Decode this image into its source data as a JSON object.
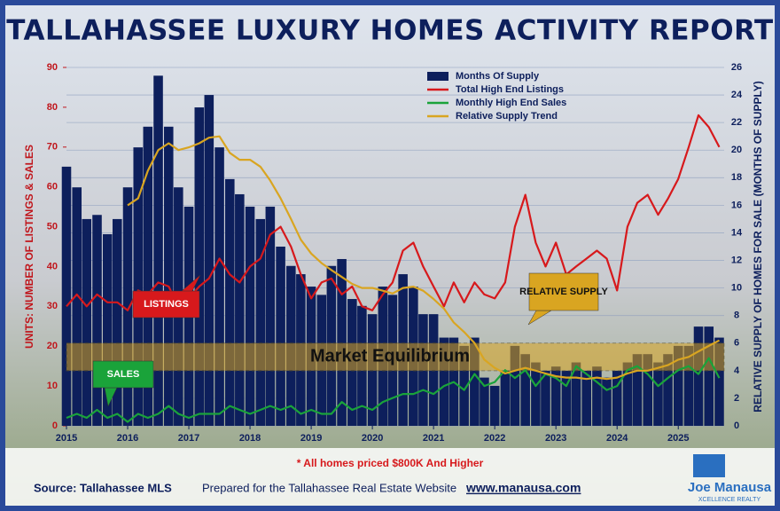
{
  "chart_data": {
    "type": "bar",
    "title": "TALLAHASSEE LUXURY HOMES ACTIVITY REPORT",
    "y_label": "UNITS: NUMBER OF LISTINGS & SALES",
    "y2_label": "RELATIVE SUPPLY OF HOMES FOR SALE (MONTHS OF SUPPLY)",
    "x": [
      2015.0,
      2015.17,
      2015.33,
      2015.5,
      2015.67,
      2015.83,
      2016.0,
      2016.17,
      2016.33,
      2016.5,
      2016.67,
      2016.83,
      2017.0,
      2017.17,
      2017.33,
      2017.5,
      2017.67,
      2017.83,
      2018.0,
      2018.17,
      2018.33,
      2018.5,
      2018.67,
      2018.83,
      2019.0,
      2019.17,
      2019.33,
      2019.5,
      2019.67,
      2019.83,
      2020.0,
      2020.17,
      2020.33,
      2020.5,
      2020.67,
      2020.83,
      2021.0,
      2021.17,
      2021.33,
      2021.5,
      2021.67,
      2021.83,
      2022.0,
      2022.17,
      2022.33,
      2022.5,
      2022.67,
      2022.83,
      2023.0,
      2023.17,
      2023.33,
      2023.5,
      2023.67,
      2023.83,
      2024.0,
      2024.17,
      2024.33,
      2024.5,
      2024.67,
      2024.83,
      2025.0,
      2025.17,
      2025.33,
      2025.5,
      2025.67
    ],
    "series": [
      {
        "name": "Months Of Supply",
        "type": "bar",
        "axis": "y2",
        "color": "#0d1f5c",
        "values": [
          18.8,
          17.3,
          15.0,
          15.3,
          13.9,
          15.0,
          17.3,
          20.2,
          21.7,
          25.4,
          21.7,
          17.3,
          15.9,
          23.1,
          24.0,
          20.2,
          17.9,
          16.8,
          15.9,
          15.0,
          15.9,
          13.0,
          11.6,
          11.0,
          10.1,
          9.5,
          11.6,
          12.1,
          9.2,
          8.7,
          8.1,
          10.1,
          9.5,
          11.0,
          10.1,
          8.1,
          8.1,
          6.4,
          6.4,
          5.8,
          6.4,
          3.5,
          2.9,
          4.0,
          5.8,
          5.2,
          4.6,
          4.0,
          4.3,
          4.0,
          4.6,
          4.0,
          4.3,
          3.5,
          4.0,
          4.6,
          5.2,
          5.2,
          4.6,
          5.2,
          5.8,
          5.8,
          7.2,
          7.2,
          6.4
        ]
      },
      {
        "name": "Total High End Listings",
        "type": "line",
        "color": "#d7191c",
        "values": [
          30,
          33,
          30,
          33,
          31,
          31,
          29,
          34,
          33,
          36,
          35,
          30,
          32,
          35,
          37,
          42,
          38,
          36,
          40,
          42,
          48,
          50,
          45,
          38,
          32,
          36,
          37,
          33,
          35,
          30,
          29,
          33,
          36,
          44,
          46,
          40,
          35,
          30,
          36,
          31,
          36,
          33,
          32,
          36,
          50,
          58,
          46,
          40,
          46,
          38,
          40,
          42,
          44,
          42,
          34,
          50,
          56,
          58,
          53,
          57,
          62,
          70,
          78,
          75,
          70
        ]
      },
      {
        "name": "Monthly High End Sales",
        "type": "line",
        "color": "#1aa33a",
        "values": [
          2,
          3,
          2,
          4,
          2,
          3,
          1,
          3,
          2,
          3,
          5,
          3,
          2,
          3,
          3,
          3,
          5,
          4,
          3,
          4,
          5,
          4,
          5,
          3,
          4,
          3,
          3,
          6,
          4,
          5,
          4,
          6,
          7,
          8,
          8,
          9,
          8,
          10,
          11,
          9,
          13,
          10,
          11,
          14,
          12,
          14,
          10,
          13,
          12,
          10,
          15,
          13,
          11,
          9,
          10,
          14,
          15,
          13,
          10,
          12,
          14,
          15,
          13,
          17,
          12
        ]
      },
      {
        "name": "Relative Supply Trend",
        "type": "line",
        "axis": "y2",
        "color": "#d9a521",
        "values": [
          null,
          null,
          null,
          null,
          null,
          null,
          16.0,
          16.5,
          18.5,
          20.0,
          20.5,
          20.0,
          20.2,
          20.5,
          20.9,
          21.0,
          19.8,
          19.3,
          19.3,
          18.8,
          17.8,
          16.5,
          15.0,
          13.5,
          12.5,
          11.8,
          11.3,
          10.8,
          10.3,
          10.0,
          10.0,
          9.8,
          9.6,
          10.0,
          10.1,
          9.8,
          9.2,
          8.5,
          7.5,
          6.8,
          6.0,
          4.8,
          4.2,
          3.8,
          4.0,
          4.2,
          4.0,
          3.8,
          3.6,
          3.5,
          3.5,
          3.4,
          3.5,
          3.4,
          3.5,
          3.8,
          4.0,
          4.0,
          4.2,
          4.4,
          4.8,
          5.0,
          5.4,
          5.8,
          6.2
        ]
      }
    ],
    "xlim": [
      2015,
      2025.75
    ],
    "xticks": [
      2015,
      2016,
      2017,
      2018,
      2019,
      2020,
      2021,
      2022,
      2023,
      2024,
      2025
    ],
    "ylim": [
      0,
      90
    ],
    "yticks": [
      0,
      10,
      20,
      30,
      40,
      50,
      60,
      70,
      80,
      90
    ],
    "y2lim": [
      0,
      26
    ],
    "y2ticks": [
      0,
      2,
      4,
      6,
      8,
      10,
      12,
      14,
      16,
      18,
      20,
      22,
      24,
      26
    ],
    "grid": true,
    "legend": "top",
    "band": {
      "label": "Market Equilibrium",
      "range": [
        4,
        6
      ]
    },
    "annotations": {
      "listings": "LISTINGS",
      "sales": "SALES",
      "relative_supply": "RELATIVE SUPPLY"
    },
    "footnote": "* All homes priced $800K And Higher",
    "source": "Source: Tallahassee MLS",
    "prepared": "Prepared for the Tallahassee Real Estate Website",
    "website": "www.manausa.com",
    "logo": "Joe Manausa",
    "logo_sub": "XCELLENCE REALTY"
  }
}
